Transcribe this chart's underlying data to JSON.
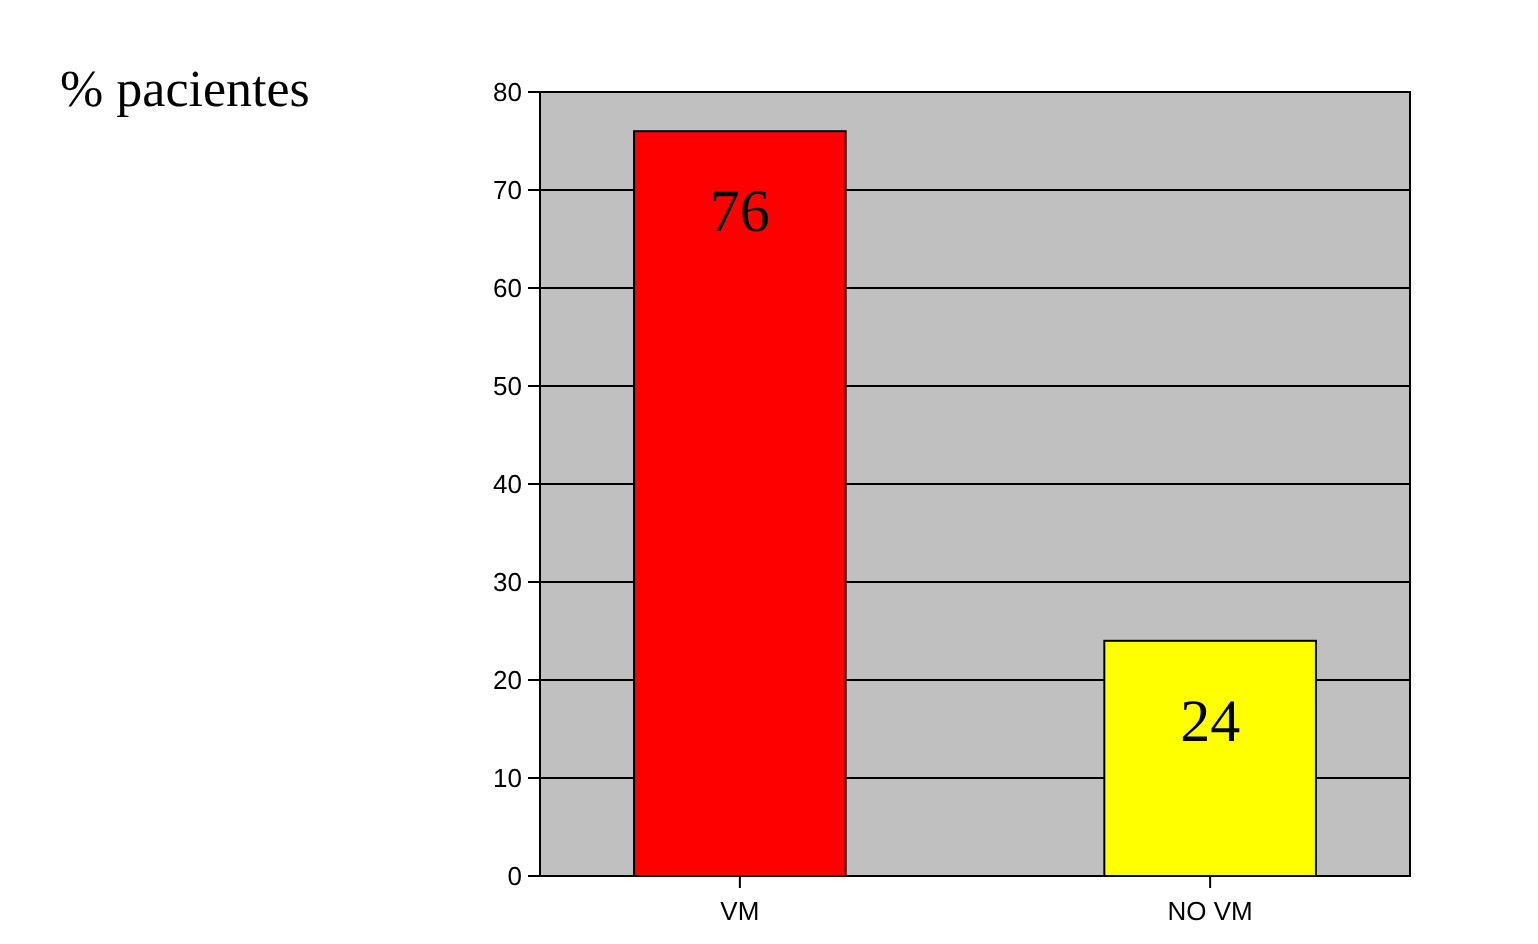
{
  "chart_data": {
    "type": "bar",
    "ylabel": "% pacientes",
    "categories": [
      "VM",
      "NO VM"
    ],
    "values": [
      76,
      24
    ],
    "colors": [
      "#ff0000",
      "#ffff00"
    ],
    "ylim": [
      0,
      80
    ],
    "yticks": [
      0,
      10,
      20,
      30,
      40,
      50,
      60,
      70,
      80
    ],
    "grid": "y",
    "data_labels": true
  }
}
